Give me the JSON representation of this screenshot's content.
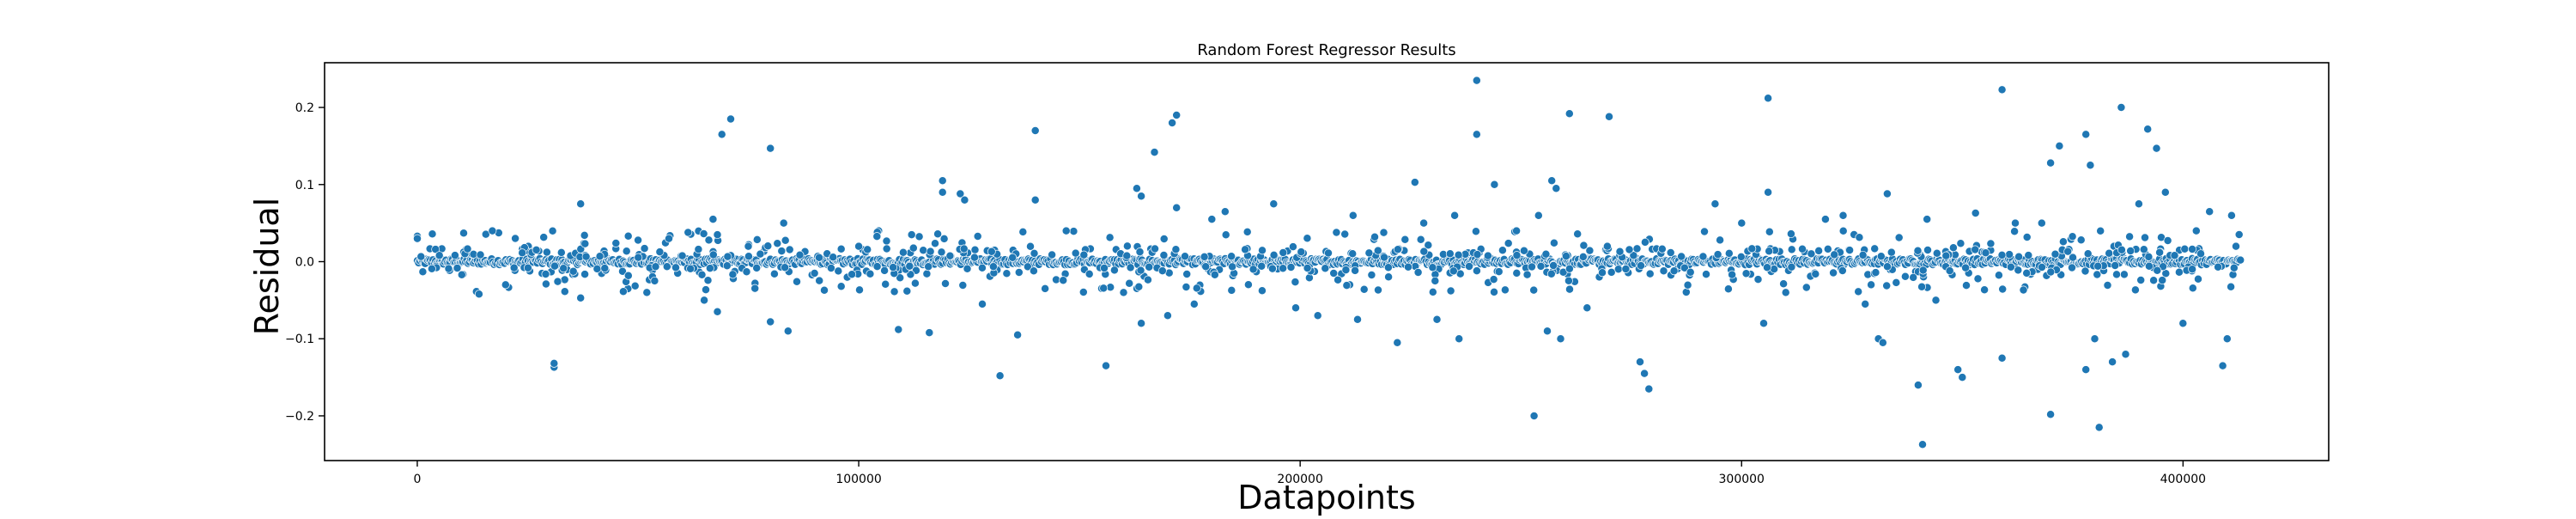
{
  "chart_data": {
    "type": "scatter",
    "title": "Random Forest Regressor Results",
    "xlabel": "Datapoints",
    "ylabel": "Residual",
    "xlim": [
      -21000,
      433000
    ],
    "ylim": [
      -0.258,
      0.258
    ],
    "x_ticks": [
      0,
      100000,
      200000,
      300000,
      400000
    ],
    "x_tick_labels": [
      "0",
      "100000",
      "200000",
      "300000",
      "400000"
    ],
    "y_ticks": [
      -0.2,
      -0.1,
      0.0,
      0.1,
      0.2
    ],
    "y_tick_labels": [
      "−0.2",
      "−0.1",
      "0.0",
      "0.1",
      "0.2"
    ],
    "grid": false,
    "legend": "none",
    "marker_color": "#1f77b4",
    "marker_edge_color": "#ffffff",
    "series": [
      {
        "x_range": [
          0,
          413000
        ],
        "baseline_band": [
          -0.004,
          0.004
        ],
        "outliers": [
          [
            0,
            0.033
          ],
          [
            0,
            0.03
          ],
          [
            5000,
            0.008
          ],
          [
            14000,
            -0.042
          ],
          [
            17000,
            0.04
          ],
          [
            20000,
            -0.03
          ],
          [
            31000,
            -0.137
          ],
          [
            31000,
            -0.132
          ],
          [
            37000,
            0.075
          ],
          [
            37000,
            -0.047
          ],
          [
            45000,
            0.024
          ],
          [
            52000,
            -0.04
          ],
          [
            57000,
            0.03
          ],
          [
            65000,
            -0.05
          ],
          [
            67000,
            0.055
          ],
          [
            68000,
            0.035
          ],
          [
            68000,
            -0.065
          ],
          [
            69000,
            0.165
          ],
          [
            71000,
            0.185
          ],
          [
            75000,
            0.02
          ],
          [
            80000,
            0.147
          ],
          [
            80000,
            -0.078
          ],
          [
            83000,
            0.05
          ],
          [
            84000,
            -0.09
          ],
          [
            90000,
            -0.015
          ],
          [
            100000,
            0.02
          ],
          [
            109000,
            -0.088
          ],
          [
            112000,
            0.035
          ],
          [
            116000,
            -0.092
          ],
          [
            119000,
            0.105
          ],
          [
            119000,
            0.09
          ],
          [
            123000,
            0.088
          ],
          [
            124000,
            0.08
          ],
          [
            128000,
            -0.055
          ],
          [
            132000,
            -0.148
          ],
          [
            136000,
            -0.095
          ],
          [
            140000,
            0.17
          ],
          [
            140000,
            0.08
          ],
          [
            147000,
            0.04
          ],
          [
            156000,
            -0.135
          ],
          [
            160000,
            -0.04
          ],
          [
            163000,
            0.095
          ],
          [
            164000,
            0.085
          ],
          [
            164000,
            -0.08
          ],
          [
            167000,
            0.142
          ],
          [
            170000,
            -0.07
          ],
          [
            171000,
            0.18
          ],
          [
            172000,
            0.19
          ],
          [
            172000,
            0.07
          ],
          [
            176000,
            -0.055
          ],
          [
            180000,
            0.055
          ],
          [
            183000,
            0.065
          ],
          [
            194000,
            0.075
          ],
          [
            199000,
            -0.06
          ],
          [
            204000,
            -0.07
          ],
          [
            212000,
            0.06
          ],
          [
            213000,
            -0.075
          ],
          [
            222000,
            -0.105
          ],
          [
            226000,
            0.103
          ],
          [
            228000,
            0.05
          ],
          [
            231000,
            -0.075
          ],
          [
            235000,
            0.06
          ],
          [
            236000,
            -0.1
          ],
          [
            240000,
            0.235
          ],
          [
            240000,
            0.165
          ],
          [
            244000,
            0.1
          ],
          [
            249000,
            0.04
          ],
          [
            253000,
            -0.2
          ],
          [
            254000,
            0.06
          ],
          [
            256000,
            -0.09
          ],
          [
            257000,
            0.105
          ],
          [
            258000,
            0.095
          ],
          [
            259000,
            -0.1
          ],
          [
            261000,
            0.192
          ],
          [
            265000,
            -0.06
          ],
          [
            270000,
            0.188
          ],
          [
            277000,
            -0.13
          ],
          [
            278000,
            -0.145
          ],
          [
            279000,
            -0.165
          ],
          [
            294000,
            0.075
          ],
          [
            300000,
            0.05
          ],
          [
            305000,
            -0.08
          ],
          [
            306000,
            0.212
          ],
          [
            306000,
            0.09
          ],
          [
            310000,
            -0.04
          ],
          [
            319000,
            0.055
          ],
          [
            323000,
            0.06
          ],
          [
            328000,
            -0.055
          ],
          [
            331000,
            -0.1
          ],
          [
            332000,
            -0.105
          ],
          [
            333000,
            0.088
          ],
          [
            340000,
            -0.16
          ],
          [
            341000,
            -0.237
          ],
          [
            342000,
            0.055
          ],
          [
            344000,
            -0.05
          ],
          [
            349000,
            -0.14
          ],
          [
            350000,
            -0.15
          ],
          [
            353000,
            0.063
          ],
          [
            359000,
            -0.125
          ],
          [
            359000,
            0.223
          ],
          [
            362000,
            0.05
          ],
          [
            368000,
            0.05
          ],
          [
            370000,
            0.128
          ],
          [
            370000,
            -0.198
          ],
          [
            372000,
            0.15
          ],
          [
            378000,
            -0.14
          ],
          [
            378000,
            0.165
          ],
          [
            379000,
            0.125
          ],
          [
            380000,
            -0.1
          ],
          [
            381000,
            -0.215
          ],
          [
            384000,
            -0.13
          ],
          [
            386000,
            0.2
          ],
          [
            387000,
            -0.12
          ],
          [
            390000,
            0.075
          ],
          [
            392000,
            0.172
          ],
          [
            394000,
            0.147
          ],
          [
            396000,
            0.09
          ],
          [
            400000,
            -0.08
          ],
          [
            403000,
            0.04
          ],
          [
            406000,
            0.065
          ],
          [
            409000,
            -0.135
          ],
          [
            410000,
            -0.1
          ],
          [
            411000,
            0.06
          ],
          [
            412000,
            0.02
          ]
        ]
      }
    ]
  }
}
